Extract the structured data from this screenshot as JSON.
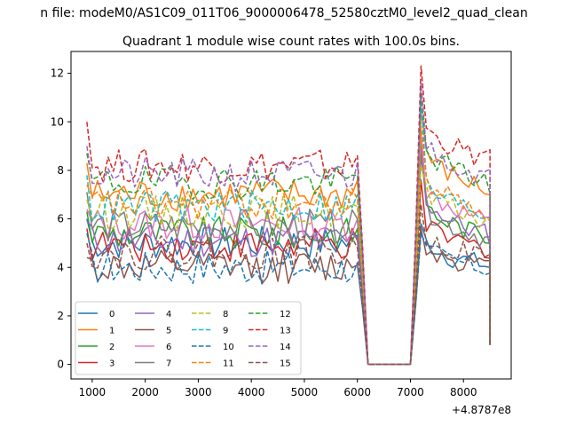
{
  "figure": {
    "suptitle": "n file: modeM0/AS1C09_011T06_9000006478_52580cztM0_level2_quad_clean",
    "title": "Quadrant 1 module wise count rates with 100.0s bins.",
    "offset_label": "+4.8787e8"
  },
  "chart_data": {
    "type": "line",
    "title": "Quadrant 1 module wise count rates with 100.0s bins.",
    "xlabel": "",
    "ylabel": "",
    "x_offset": 487870000,
    "xlim": [
      600,
      8900
    ],
    "ylim": [
      -0.6,
      12.9
    ],
    "xticks": [
      1000,
      2000,
      3000,
      4000,
      5000,
      6000,
      7000,
      8000
    ],
    "yticks": [
      0,
      2,
      4,
      6,
      8,
      10,
      12
    ],
    "grid": false,
    "legend_position": "lower-left",
    "legend_columns": 4,
    "x_start": 900,
    "x_step": 100,
    "gap_x": [
      6200,
      6300,
      6400,
      6500,
      6600,
      6700,
      6800,
      6900,
      7000
    ],
    "end_x": 8500,
    "series": [
      {
        "name": "0",
        "color": "#1f77b4",
        "dash": "solid",
        "pre_mean": 5.0,
        "pre_start": 6.0,
        "pre_end": 5.3,
        "post": [
          5.8,
          5.0,
          4.9,
          4.8,
          4.6,
          4.5,
          4.4,
          4.4,
          4.3,
          4.3,
          4.2,
          4.2,
          4.1,
          4.0
        ]
      },
      {
        "name": "1",
        "color": "#ff7f0e",
        "dash": "solid",
        "pre_mean": 7.0,
        "pre_start": 8.3,
        "pre_end": 7.6,
        "post": [
          10.4,
          8.8,
          8.4,
          8.2,
          8.0,
          7.9,
          7.8,
          7.7,
          7.6,
          7.5,
          7.4,
          7.3,
          7.2,
          7.1
        ]
      },
      {
        "name": "2",
        "color": "#2ca02c",
        "dash": "solid",
        "pre_mean": 5.4,
        "pre_start": 6.3,
        "pre_end": 5.6,
        "post": [
          9.2,
          6.6,
          6.3,
          6.1,
          6.0,
          5.9,
          5.8,
          5.7,
          5.6,
          5.5,
          5.5,
          5.4,
          5.3,
          5.2
        ]
      },
      {
        "name": "3",
        "color": "#d62728",
        "dash": "solid",
        "pre_mean": 4.9,
        "pre_start": 5.6,
        "pre_end": 5.1,
        "post": [
          7.6,
          5.6,
          5.5,
          5.4,
          5.3,
          5.2,
          5.1,
          5.1,
          5.0,
          5.0,
          4.9,
          4.8,
          4.8,
          4.7
        ]
      },
      {
        "name": "4",
        "color": "#9467bd",
        "dash": "solid",
        "pre_mean": 5.1,
        "pre_start": 5.9,
        "pre_end": 5.2,
        "post": [
          8.8,
          6.8,
          6.5,
          6.3,
          6.2,
          6.0,
          5.9,
          5.8,
          5.7,
          5.6,
          5.5,
          5.5,
          5.4,
          5.3
        ]
      },
      {
        "name": "5",
        "color": "#8c564b",
        "dash": "solid",
        "pre_mean": 4.0,
        "pre_start": 4.4,
        "pre_end": 4.1,
        "post": [
          5.6,
          4.8,
          4.7,
          4.6,
          4.5,
          4.4,
          4.4,
          4.3,
          4.3,
          4.2,
          4.1,
          4.1,
          4.0,
          3.9
        ]
      },
      {
        "name": "6",
        "color": "#e377c2",
        "dash": "solid",
        "pre_mean": 5.8,
        "pre_start": 6.4,
        "pre_end": 6.0,
        "post": [
          9.6,
          7.2,
          6.9,
          6.8,
          6.7,
          6.6,
          6.5,
          6.4,
          6.3,
          6.2,
          6.1,
          6.0,
          5.9,
          5.8
        ]
      },
      {
        "name": "7",
        "color": "#7f7f7f",
        "dash": "solid",
        "pre_mean": 5.7,
        "pre_start": 7.1,
        "pre_end": 6.0,
        "post": [
          8.6,
          6.4,
          6.2,
          6.0,
          5.9,
          5.8,
          5.7,
          5.6,
          5.5,
          5.5,
          5.4,
          5.3,
          5.2,
          5.1
        ]
      },
      {
        "name": "8",
        "color": "#bcbd22",
        "dash": "dashed",
        "pre_mean": 6.3,
        "pre_start": 6.8,
        "pre_end": 6.5,
        "post": [
          8.2,
          7.0,
          6.8,
          6.7,
          6.6,
          6.5,
          6.4,
          6.3,
          6.3,
          6.2,
          6.1,
          6.0,
          6.0,
          5.9
        ]
      },
      {
        "name": "9",
        "color": "#17becf",
        "dash": "dashed",
        "pre_mean": 6.5,
        "pre_start": 7.8,
        "pre_end": 7.0,
        "post": [
          10.8,
          7.4,
          7.2,
          7.0,
          6.9,
          6.8,
          6.7,
          6.6,
          6.5,
          6.5,
          6.4,
          6.3,
          6.2,
          6.1
        ]
      },
      {
        "name": "10",
        "color": "#1f77b4",
        "dash": "dashed",
        "pre_mean": 4.0,
        "pre_start": 5.4,
        "pre_end": 4.2,
        "post": [
          5.4,
          4.7,
          4.6,
          4.5,
          4.4,
          4.3,
          4.3,
          4.2,
          4.2,
          4.1,
          4.1,
          4.0,
          4.0,
          3.9
        ]
      },
      {
        "name": "11",
        "color": "#ff7f0e",
        "dash": "dashed",
        "pre_mean": 6.6,
        "pre_start": 7.4,
        "pre_end": 6.8,
        "post": [
          9.8,
          7.6,
          7.4,
          7.2,
          7.1,
          7.0,
          6.9,
          6.8,
          6.7,
          6.6,
          6.5,
          6.4,
          6.4,
          6.3
        ]
      },
      {
        "name": "12",
        "color": "#2ca02c",
        "dash": "dashed",
        "pre_mean": 7.5,
        "pre_start": 8.7,
        "pre_end": 7.8,
        "post": [
          11.2,
          8.8,
          8.6,
          8.4,
          8.3,
          8.2,
          8.1,
          8.0,
          7.9,
          7.8,
          7.7,
          7.6,
          7.5,
          7.4
        ]
      },
      {
        "name": "13",
        "color": "#d62728",
        "dash": "dashed",
        "pre_mean": 8.2,
        "pre_start": 10.0,
        "pre_end": 8.6,
        "post": [
          12.3,
          9.8,
          9.5,
          9.3,
          9.2,
          9.1,
          9.0,
          8.9,
          8.8,
          8.7,
          8.6,
          8.6,
          8.5,
          8.4
        ]
      },
      {
        "name": "14",
        "color": "#9467bd",
        "dash": "dashed",
        "pre_mean": 7.8,
        "pre_start": 9.0,
        "pre_end": 8.3,
        "post": [
          11.6,
          9.0,
          8.8,
          8.6,
          8.5,
          8.4,
          8.3,
          8.2,
          8.1,
          8.0,
          7.9,
          7.8,
          7.8,
          7.7
        ]
      },
      {
        "name": "15",
        "color": "#8c564b",
        "dash": "dashed",
        "pre_mean": 4.6,
        "pre_start": 5.0,
        "pre_end": 4.8,
        "post": [
          6.6,
          5.2,
          5.1,
          5.0,
          4.9,
          4.8,
          4.8,
          4.7,
          4.7,
          4.6,
          4.5,
          4.5,
          4.4,
          4.3
        ]
      }
    ]
  }
}
